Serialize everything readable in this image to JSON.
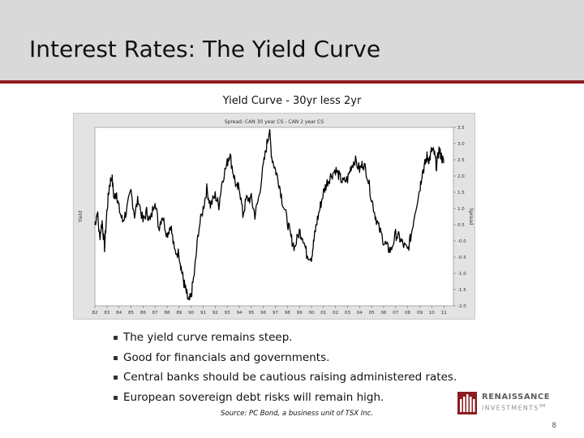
{
  "slide": {
    "title": "Interest Rates: The Yield Curve",
    "chart_caption": "Yield Curve - 30yr less 2yr",
    "bullets": [
      "The yield curve remains steep.",
      "Good for financials and governments.",
      "Central banks should be cautious raising administered rates.",
      "European sovereign debt risks will remain high."
    ],
    "source": "Source: PC Bond, a business unit of TSX Inc.",
    "page_number": "8",
    "logo": {
      "line1": "RENAISSANCE",
      "line2": "INVESTMENTS",
      "trademark": "SM"
    }
  },
  "colors": {
    "accent": "#8c1c20",
    "title_bar": "#d9d9d9",
    "plot_background": "#ffffff",
    "frame_background": "#e3e3e3",
    "line": "#000000"
  },
  "chart_data": {
    "type": "line",
    "title": "Spread: CAN 30 year CS - CAN 2 year CS",
    "xlabel": "",
    "ylabel": "Yield",
    "ylabel_right": "Spread",
    "y_axis_position": "right",
    "x_ticks": [
      "82",
      "83",
      "84",
      "85",
      "86",
      "87",
      "88",
      "89",
      "90",
      "91",
      "92",
      "93",
      "94",
      "95",
      "96",
      "97",
      "98",
      "99",
      "00",
      "01",
      "02",
      "03",
      "04",
      "05",
      "06",
      "07",
      "08",
      "09",
      "10",
      "11"
    ],
    "y_ticks": [
      3.5,
      3.0,
      2.5,
      2.0,
      1.5,
      1.0,
      0.5,
      0.0,
      -0.5,
      -1.0,
      -1.5,
      -2.0
    ],
    "y_tick_labels": [
      "3.5",
      "3.0",
      "2.5",
      "2.0",
      "1.5",
      "1.0",
      "0.5",
      "-0.0",
      "-0.5",
      "-1.0",
      "-1.5",
      "-2.0"
    ],
    "ylim": [
      -2.0,
      3.5
    ],
    "xlim": [
      1982,
      2011.8
    ],
    "grid": false,
    "legend": "none",
    "series": [
      {
        "x": [
          1982.0,
          1982.2,
          1982.4,
          1982.6,
          1982.8,
          1983.0,
          1983.2,
          1983.4,
          1983.6,
          1983.8,
          1984.0,
          1984.3,
          1984.6,
          1985.0,
          1985.3,
          1985.6,
          1986.0,
          1986.3,
          1986.6,
          1987.0,
          1987.3,
          1987.6,
          1988.0,
          1988.3,
          1988.6,
          1989.0,
          1989.2,
          1989.4,
          1989.6,
          1989.8,
          1990.0,
          1990.3,
          1990.6,
          1991.0,
          1991.3,
          1991.6,
          1992.0,
          1992.3,
          1992.6,
          1993.0,
          1993.2,
          1993.5,
          1993.8,
          1994.0,
          1994.3,
          1994.6,
          1995.0,
          1995.3,
          1995.6,
          1996.0,
          1996.3,
          1996.5,
          1996.7,
          1997.0,
          1997.3,
          1997.6,
          1998.0,
          1998.3,
          1998.6,
          1999.0,
          1999.3,
          1999.6,
          2000.0,
          2000.2,
          2000.4,
          2000.7,
          2001.0,
          2001.3,
          2001.6,
          2002.0,
          2002.3,
          2002.6,
          2003.0,
          2003.3,
          2003.6,
          2004.0,
          2004.3,
          2004.6,
          2005.0,
          2005.3,
          2005.6,
          2006.0,
          2006.3,
          2006.6,
          2007.0,
          2007.3,
          2007.6,
          2008.0,
          2008.3,
          2008.6,
          2009.0,
          2009.2,
          2009.4,
          2009.6,
          2009.8,
          2010.0,
          2010.2,
          2010.4,
          2010.6,
          2010.8,
          2011.0
        ],
        "y": [
          0.5,
          0.9,
          0.1,
          0.6,
          -0.2,
          0.9,
          1.7,
          2.0,
          1.3,
          1.5,
          1.0,
          0.6,
          0.9,
          1.5,
          0.8,
          1.3,
          0.6,
          0.9,
          0.6,
          1.3,
          0.4,
          0.8,
          0.2,
          0.5,
          -0.3,
          -0.4,
          -0.9,
          -1.3,
          -1.6,
          -1.9,
          -1.7,
          -0.9,
          0.3,
          1.0,
          1.6,
          1.1,
          1.4,
          1.1,
          1.9,
          2.4,
          2.7,
          2.1,
          1.6,
          1.7,
          0.8,
          1.3,
          1.3,
          0.8,
          1.3,
          2.3,
          3.0,
          3.4,
          2.6,
          2.2,
          1.8,
          1.2,
          0.6,
          0.1,
          -0.2,
          0.3,
          0.1,
          -0.4,
          -0.5,
          0.0,
          0.5,
          1.0,
          1.5,
          1.8,
          2.0,
          2.2,
          2.0,
          1.8,
          1.9,
          2.3,
          2.5,
          2.2,
          2.4,
          2.1,
          1.3,
          0.8,
          0.4,
          0.0,
          -0.2,
          -0.3,
          0.2,
          0.1,
          -0.1,
          -0.3,
          0.2,
          0.9,
          1.6,
          2.1,
          2.3,
          2.6,
          2.5,
          2.8,
          2.7,
          2.3,
          2.8,
          2.6,
          2.4
        ]
      }
    ]
  }
}
